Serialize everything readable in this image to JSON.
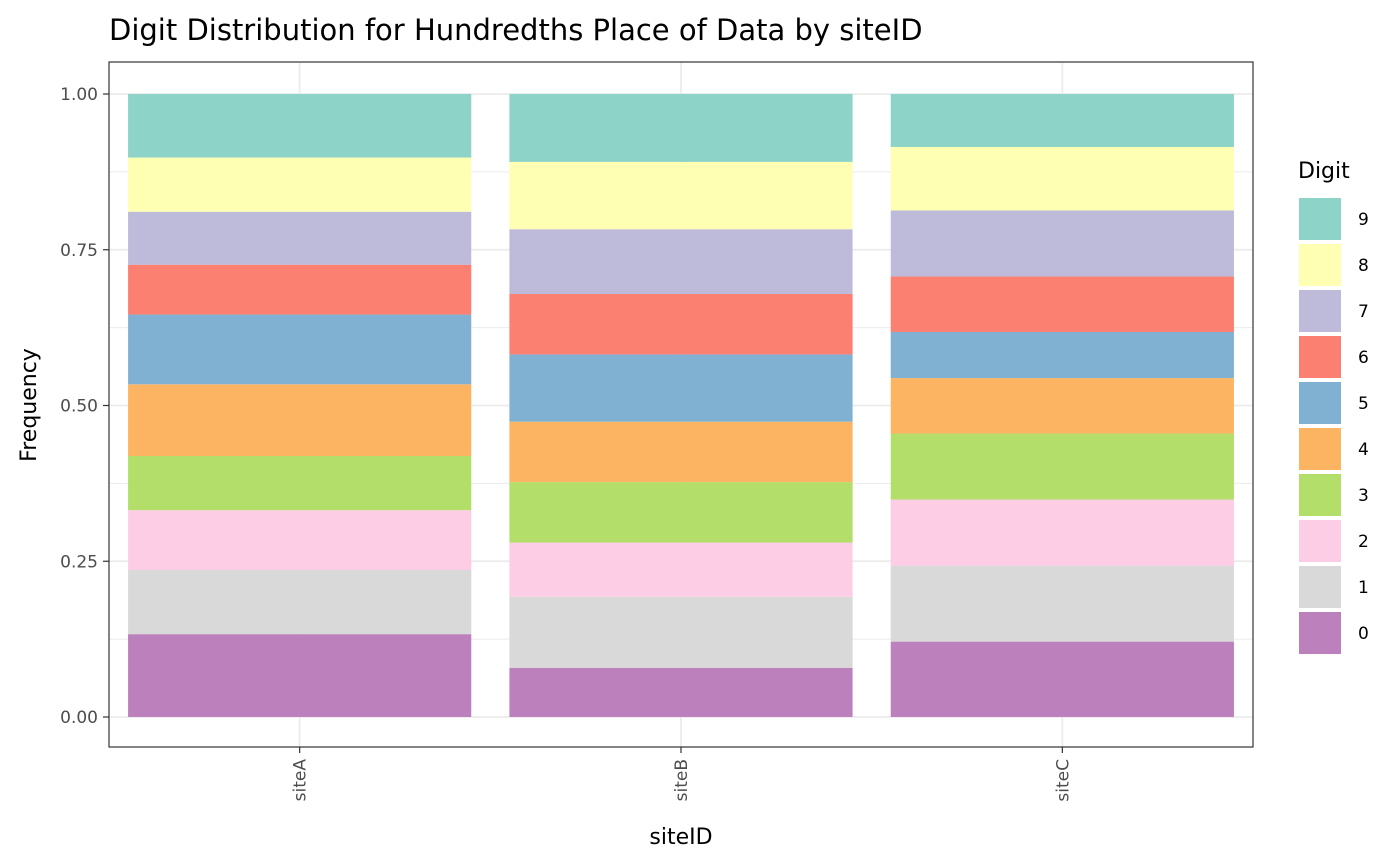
{
  "chart_data": {
    "type": "bar",
    "stacked": true,
    "title": "Digit Distribution for Hundredths Place of Data by siteID",
    "xlabel": "siteID",
    "ylabel": "Frequency",
    "ylim": [
      0,
      1
    ],
    "y_ticks": [
      "0.00",
      "0.25",
      "0.50",
      "0.75",
      "1.00"
    ],
    "grid": true,
    "legend_position": "right",
    "legend_title": "Digit",
    "categories": [
      "siteA",
      "siteB",
      "siteC"
    ],
    "series": [
      {
        "name": "0",
        "color": "#BC80BD",
        "values": [
          0.133,
          0.079,
          0.121
        ]
      },
      {
        "name": "1",
        "color": "#D9D9D9",
        "values": [
          0.103,
          0.114,
          0.122
        ]
      },
      {
        "name": "2",
        "color": "#FCCDE5",
        "values": [
          0.096,
          0.087,
          0.106
        ]
      },
      {
        "name": "3",
        "color": "#B3DE69",
        "values": [
          0.087,
          0.097,
          0.106
        ]
      },
      {
        "name": "4",
        "color": "#FDB462",
        "values": [
          0.115,
          0.097,
          0.089
        ]
      },
      {
        "name": "5",
        "color": "#80B1D3",
        "values": [
          0.112,
          0.108,
          0.074
        ]
      },
      {
        "name": "6",
        "color": "#FB8072",
        "values": [
          0.08,
          0.097,
          0.089
        ]
      },
      {
        "name": "7",
        "color": "#BEBADA",
        "values": [
          0.085,
          0.104,
          0.106
        ]
      },
      {
        "name": "8",
        "color": "#FFFFB3",
        "values": [
          0.087,
          0.108,
          0.102
        ]
      },
      {
        "name": "9",
        "color": "#8DD3C7",
        "values": [
          0.102,
          0.109,
          0.085
        ]
      }
    ]
  }
}
